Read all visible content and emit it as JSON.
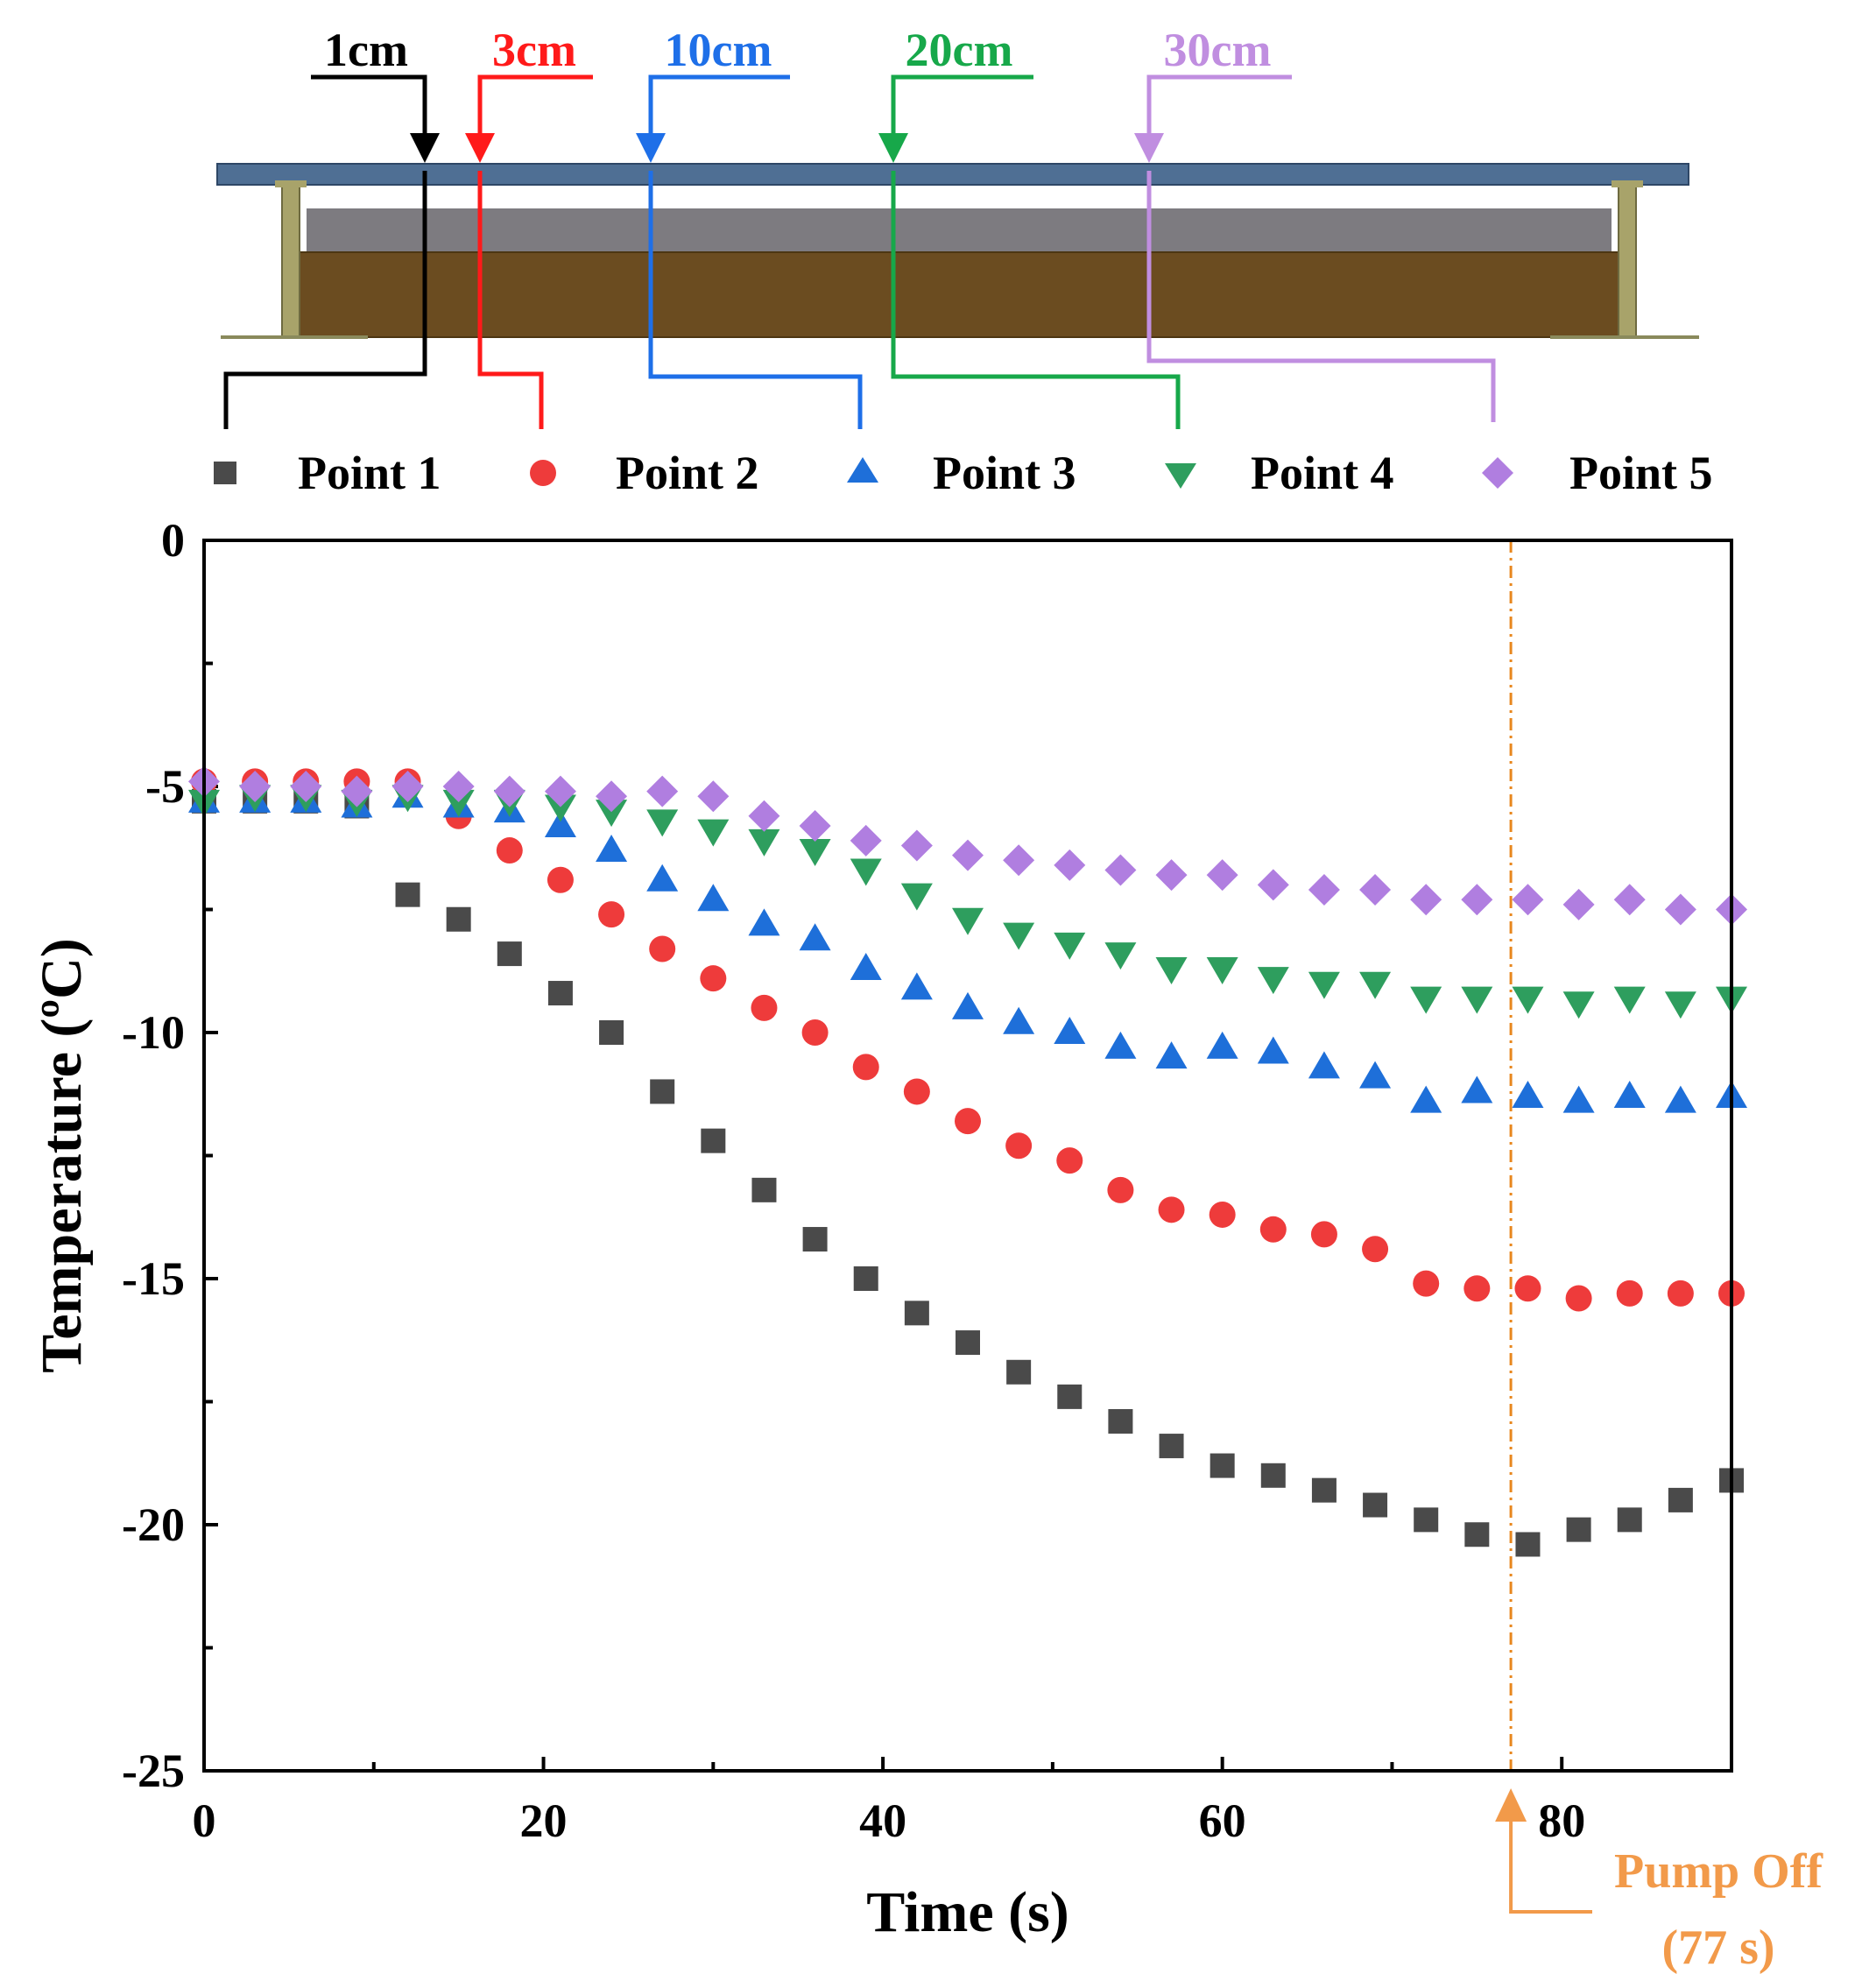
{
  "diagram": {
    "depth_labels": [
      {
        "text": "1cm",
        "color": "#000000"
      },
      {
        "text": "3cm",
        "color": "#ff1a1a"
      },
      {
        "text": "10cm",
        "color": "#1e6fe8"
      },
      {
        "text": "20cm",
        "color": "#17a84a"
      },
      {
        "text": "30cm",
        "color": "#c08ee0"
      }
    ]
  },
  "chart_data": {
    "type": "scatter",
    "xlabel": "Time (s)",
    "ylabel": "Temperature (ºC)",
    "xlim": [
      0,
      90
    ],
    "ylim": [
      -25,
      0
    ],
    "xticks": [
      0,
      20,
      40,
      60,
      80
    ],
    "yticks": [
      0,
      -5,
      -10,
      -15,
      -20,
      -25
    ],
    "x": [
      0,
      3,
      6,
      9,
      12,
      15,
      18,
      21,
      24,
      27,
      30,
      33,
      36,
      39,
      42,
      45,
      48,
      51,
      54,
      57,
      60,
      63,
      66,
      69,
      72,
      75,
      78,
      81,
      84,
      87,
      90
    ],
    "series": [
      {
        "name": "Point 1",
        "marker": "square",
        "color": "#4a4a4a",
        "values": [
          -5.3,
          -5.3,
          -5.3,
          -5.4,
          -7.2,
          -7.7,
          -8.4,
          -9.2,
          -10.0,
          -11.2,
          -12.2,
          -13.2,
          -14.2,
          -15.0,
          -15.7,
          -16.3,
          -16.9,
          -17.4,
          -17.9,
          -18.4,
          -18.8,
          -19.0,
          -19.3,
          -19.6,
          -19.9,
          -20.2,
          -20.4,
          -20.1,
          -19.9,
          -19.5,
          -19.1
        ]
      },
      {
        "name": "Point 2",
        "marker": "circle",
        "color": "#ee3b3b",
        "values": [
          -4.9,
          -4.9,
          -4.9,
          -4.9,
          -4.9,
          -5.6,
          -6.3,
          -6.9,
          -7.6,
          -8.3,
          -8.9,
          -9.5,
          -10.0,
          -10.7,
          -11.2,
          -11.8,
          -12.3,
          -12.6,
          -13.2,
          -13.6,
          -13.7,
          -14.0,
          -14.1,
          -14.4,
          -15.1,
          -15.2,
          -15.2,
          -15.4,
          -15.3,
          -15.3,
          -15.3
        ]
      },
      {
        "name": "Point 3",
        "marker": "triangle-up",
        "color": "#1e6fd9",
        "values": [
          -5.3,
          -5.3,
          -5.3,
          -5.4,
          -5.2,
          -5.4,
          -5.5,
          -5.8,
          -6.3,
          -6.9,
          -7.3,
          -7.8,
          -8.1,
          -8.7,
          -9.1,
          -9.5,
          -9.8,
          -10.0,
          -10.3,
          -10.5,
          -10.3,
          -10.4,
          -10.7,
          -10.9,
          -11.4,
          -11.2,
          -11.3,
          -11.4,
          -11.3,
          -11.4,
          -11.3
        ]
      },
      {
        "name": "Point 4",
        "marker": "triangle-down",
        "color": "#2e9e5e",
        "values": [
          -5.3,
          -5.2,
          -5.2,
          -5.3,
          -5.2,
          -5.3,
          -5.3,
          -5.4,
          -5.5,
          -5.7,
          -5.9,
          -6.1,
          -6.3,
          -6.7,
          -7.2,
          -7.7,
          -8.0,
          -8.2,
          -8.4,
          -8.7,
          -8.7,
          -8.9,
          -9.0,
          -9.0,
          -9.3,
          -9.3,
          -9.3,
          -9.4,
          -9.3,
          -9.4,
          -9.3
        ]
      },
      {
        "name": "Point 5",
        "marker": "diamond",
        "color": "#b07ee0",
        "values": [
          -4.9,
          -5.0,
          -5.0,
          -5.1,
          -5.0,
          -5.0,
          -5.1,
          -5.1,
          -5.2,
          -5.1,
          -5.2,
          -5.6,
          -5.8,
          -6.1,
          -6.2,
          -6.4,
          -6.5,
          -6.6,
          -6.7,
          -6.8,
          -6.8,
          -7.0,
          -7.1,
          -7.1,
          -7.3,
          -7.3,
          -7.3,
          -7.4,
          -7.3,
          -7.5,
          -7.5
        ]
      }
    ],
    "annotation": {
      "x": 77,
      "line1": "Pump Off",
      "line2": "(77 s)",
      "color": "#f29a4a",
      "line_color": "#e8871e"
    },
    "legend_position": "top"
  }
}
